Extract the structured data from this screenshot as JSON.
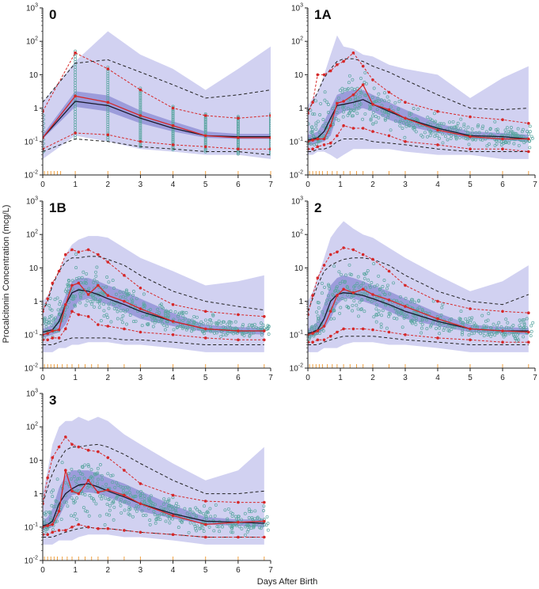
{
  "chart_data": {
    "type": "line",
    "title": "",
    "xlabel": "Days After Birth",
    "ylabel": "Procalcitonin Concentration (mcg/L)",
    "xlim": [
      0,
      7
    ],
    "ylim": [
      0.01,
      1000
    ],
    "yscale": "log",
    "x_ticks": [
      "0",
      "1",
      "2",
      "3",
      "4",
      "5",
      "6",
      "7"
    ],
    "y_ticks": [
      {
        "base": "10",
        "exp": "-2",
        "value": 0.01
      },
      {
        "base": "10",
        "exp": "-1",
        "value": 0.1
      },
      {
        "base": "1",
        "exp": "",
        "value": 1
      },
      {
        "base": "10",
        "exp": "",
        "value": 10
      },
      {
        "base": "10",
        "exp": "2",
        "value": 100
      },
      {
        "base": "10",
        "exp": "3",
        "value": 1000
      }
    ],
    "colors": {
      "band": "#c9c9ee",
      "band_dark": "#8e8ed6",
      "median": "#1a1a2e",
      "obs": "#d62728",
      "pred": "#222222",
      "points": "#5aa6a0",
      "ticks_obs": "#f0a040"
    },
    "panels": [
      {
        "label": "0",
        "x": [
          0,
          1,
          2,
          3,
          4,
          5,
          6,
          7
        ],
        "rug": [
          0.05,
          0.15,
          0.25,
          0.35,
          0.45,
          0.55,
          1,
          2,
          3,
          4,
          5,
          6,
          7
        ],
        "band_outer": {
          "low": [
            0.03,
            0.15,
            0.1,
            0.06,
            0.05,
            0.04,
            0.04,
            0.03
          ],
          "high": [
            1.5,
            25,
            200,
            40,
            15,
            3.5,
            15,
            70
          ]
        },
        "band_inner": {
          "low": [
            0.12,
            1.1,
            0.8,
            0.35,
            0.2,
            0.13,
            0.12,
            0.12
          ],
          "high": [
            0.16,
            3.2,
            2.4,
            0.85,
            0.4,
            0.2,
            0.17,
            0.17
          ]
        },
        "median_sim": [
          0.13,
          1.6,
          1.2,
          0.5,
          0.25,
          0.15,
          0.14,
          0.14
        ],
        "obs_median": [
          0.13,
          2.3,
          1.5,
          0.6,
          0.3,
          0.15,
          0.13,
          0.13
        ],
        "obs_upper": [
          0.8,
          45,
          15,
          3.5,
          1.0,
          0.6,
          0.5,
          0.6
        ],
        "obs_lower": [
          0.06,
          0.18,
          0.16,
          0.1,
          0.08,
          0.07,
          0.06,
          0.06
        ],
        "pred_upper": [
          1.5,
          22,
          28,
          12,
          5,
          2,
          2.5,
          3.5
        ],
        "pred_lower": [
          0.05,
          0.12,
          0.1,
          0.07,
          0.06,
          0.05,
          0.05,
          0.04
        ]
      },
      {
        "label": "1A",
        "x": [
          0,
          0.15,
          0.3,
          0.5,
          0.7,
          0.9,
          1.1,
          1.4,
          1.7,
          2.0,
          2.5,
          3,
          4,
          5,
          6,
          6.8
        ],
        "rug": [
          0.05,
          0.15,
          0.25,
          0.35,
          0.45,
          0.6,
          0.75,
          0.9,
          1.1,
          1.3,
          1.5,
          1.7,
          2.0,
          2.5,
          3,
          4,
          5,
          6,
          6.8
        ],
        "band_outer": {
          "low": [
            0.04,
            0.04,
            0.05,
            0.05,
            0.04,
            0.03,
            0.04,
            0.06,
            0.06,
            0.06,
            0.06,
            0.05,
            0.04,
            0.04,
            0.03,
            0.03
          ],
          "high": [
            1.2,
            2,
            3,
            10,
            40,
            150,
            70,
            60,
            40,
            35,
            20,
            15,
            10,
            2,
            8,
            18
          ]
        },
        "band_inner": {
          "low": [
            0.08,
            0.08,
            0.09,
            0.1,
            0.15,
            0.6,
            0.8,
            0.9,
            1.0,
            0.8,
            0.45,
            0.3,
            0.18,
            0.12,
            0.11,
            0.1
          ],
          "high": [
            0.16,
            0.17,
            0.2,
            0.4,
            1.0,
            2.5,
            3,
            3.5,
            3.5,
            2.5,
            1.5,
            0.9,
            0.35,
            0.2,
            0.18,
            0.16
          ]
        },
        "median_sim": [
          0.11,
          0.12,
          0.13,
          0.2,
          0.5,
          1.2,
          1.3,
          1.5,
          1.8,
          1.3,
          0.8,
          0.5,
          0.25,
          0.15,
          0.14,
          0.12
        ],
        "obs_median": [
          0.1,
          0.11,
          0.12,
          0.12,
          0.3,
          1.4,
          1.6,
          2.5,
          5.0,
          1.3,
          0.9,
          0.5,
          0.22,
          0.14,
          0.12,
          0.12
        ],
        "obs_upper": [
          0.7,
          1.5,
          10,
          10,
          13,
          20,
          25,
          45,
          18,
          7,
          3,
          1.5,
          0.8,
          0.55,
          0.45,
          0.35
        ],
        "obs_lower": [
          0.06,
          0.06,
          0.07,
          0.08,
          0.09,
          0.15,
          0.3,
          0.25,
          0.25,
          0.2,
          0.15,
          0.1,
          0.08,
          0.06,
          0.06,
          0.05
        ],
        "pred_upper": [
          0.8,
          1.5,
          3,
          8,
          15,
          25,
          30,
          30,
          25,
          18,
          12,
          7,
          2.5,
          1.0,
          0.9,
          1.0
        ],
        "pred_lower": [
          0.05,
          0.05,
          0.06,
          0.06,
          0.07,
          0.1,
          0.12,
          0.12,
          0.12,
          0.1,
          0.09,
          0.08,
          0.06,
          0.05,
          0.05,
          0.05
        ]
      },
      {
        "label": "1B",
        "x": [
          0,
          0.15,
          0.3,
          0.5,
          0.7,
          0.9,
          1.1,
          1.4,
          1.7,
          2.0,
          2.5,
          3,
          4,
          5,
          6,
          6.8
        ],
        "rug": [
          0.05,
          0.15,
          0.25,
          0.35,
          0.45,
          0.6,
          0.75,
          0.9,
          1.1,
          1.3,
          1.5,
          1.7,
          2.0,
          2.5,
          3,
          4,
          5,
          6,
          6.8
        ],
        "band_outer": {
          "low": [
            0.03,
            0.03,
            0.03,
            0.04,
            0.04,
            0.05,
            0.05,
            0.06,
            0.06,
            0.06,
            0.05,
            0.05,
            0.04,
            0.03,
            0.03,
            0.03
          ],
          "high": [
            1.0,
            1.5,
            3,
            8,
            25,
            50,
            70,
            90,
            90,
            80,
            40,
            20,
            8,
            3,
            4,
            6
          ]
        },
        "band_inner": {
          "low": [
            0.08,
            0.09,
            0.1,
            0.12,
            0.2,
            0.5,
            1.0,
            1.2,
            1.0,
            0.8,
            0.5,
            0.3,
            0.18,
            0.12,
            0.11,
            0.1
          ],
          "high": [
            0.15,
            0.17,
            0.2,
            0.5,
            1.5,
            4,
            5,
            5,
            4,
            3,
            2,
            1.2,
            0.45,
            0.2,
            0.17,
            0.16
          ]
        },
        "median_sim": [
          0.12,
          0.13,
          0.14,
          0.25,
          0.8,
          1.8,
          2.2,
          2.0,
          1.6,
          1.2,
          0.8,
          0.5,
          0.25,
          0.15,
          0.13,
          0.13
        ],
        "obs_median": [
          0.1,
          0.11,
          0.13,
          0.14,
          0.8,
          3.0,
          3.5,
          1.6,
          3.0,
          1.5,
          1.0,
          0.6,
          0.25,
          0.15,
          0.13,
          0.13
        ],
        "obs_upper": [
          0.5,
          1.2,
          3.5,
          8,
          25,
          35,
          30,
          35,
          25,
          15,
          6,
          2.5,
          0.8,
          0.5,
          0.4,
          0.35
        ],
        "obs_lower": [
          0.07,
          0.07,
          0.08,
          0.08,
          0.15,
          0.5,
          0.4,
          0.35,
          0.2,
          0.18,
          0.15,
          0.12,
          0.1,
          0.08,
          0.07,
          0.07
        ],
        "pred_upper": [
          0.5,
          1.0,
          3,
          8,
          15,
          20,
          20,
          22,
          22,
          18,
          12,
          6,
          2,
          1,
          0.7,
          0.55
        ],
        "pred_lower": [
          0.05,
          0.05,
          0.05,
          0.06,
          0.07,
          0.08,
          0.08,
          0.08,
          0.08,
          0.08,
          0.07,
          0.07,
          0.06,
          0.05,
          0.05,
          0.05
        ]
      },
      {
        "label": "2",
        "x": [
          0,
          0.15,
          0.3,
          0.5,
          0.7,
          0.9,
          1.1,
          1.4,
          1.7,
          2.0,
          2.5,
          3,
          4,
          5,
          6,
          6.8
        ],
        "rug": [
          0.05,
          0.15,
          0.25,
          0.35,
          0.45,
          0.6,
          0.75,
          0.9,
          1.1,
          1.3,
          1.5,
          1.7,
          2.0,
          2.5,
          3,
          4,
          5,
          6,
          6.8
        ],
        "band_outer": {
          "low": [
            0.03,
            0.03,
            0.03,
            0.04,
            0.04,
            0.04,
            0.05,
            0.06,
            0.06,
            0.06,
            0.05,
            0.05,
            0.04,
            0.03,
            0.03,
            0.03
          ],
          "high": [
            1.0,
            2,
            5,
            20,
            80,
            150,
            250,
            150,
            100,
            80,
            40,
            20,
            6,
            2,
            4,
            12
          ]
        },
        "band_inner": {
          "low": [
            0.08,
            0.09,
            0.1,
            0.15,
            0.3,
            0.8,
            1.2,
            1.2,
            1.0,
            0.8,
            0.5,
            0.3,
            0.18,
            0.12,
            0.11,
            0.1
          ],
          "high": [
            0.15,
            0.18,
            0.25,
            0.8,
            3,
            5,
            6,
            5,
            4,
            3,
            2,
            1.2,
            0.45,
            0.2,
            0.17,
            0.16
          ]
        },
        "median_sim": [
          0.11,
          0.12,
          0.14,
          0.3,
          1.0,
          1.6,
          1.8,
          1.7,
          1.5,
          1.2,
          0.8,
          0.5,
          0.25,
          0.15,
          0.13,
          0.13
        ],
        "obs_median": [
          0.1,
          0.11,
          0.13,
          0.18,
          0.5,
          1.5,
          2.3,
          1.8,
          2.3,
          1.6,
          1.1,
          0.7,
          0.3,
          0.15,
          0.13,
          0.12
        ],
        "obs_upper": [
          0.4,
          1.5,
          5,
          12,
          25,
          30,
          40,
          35,
          25,
          18,
          8,
          3,
          1.0,
          0.6,
          0.5,
          0.45
        ],
        "obs_lower": [
          0.06,
          0.06,
          0.07,
          0.07,
          0.09,
          0.12,
          0.15,
          0.15,
          0.15,
          0.14,
          0.12,
          0.1,
          0.08,
          0.07,
          0.06,
          0.06
        ],
        "pred_upper": [
          0.5,
          1.2,
          3,
          8,
          12,
          15,
          18,
          20,
          20,
          18,
          12,
          6,
          2,
          1,
          0.8,
          1.6
        ],
        "pred_lower": [
          0.05,
          0.05,
          0.05,
          0.06,
          0.07,
          0.08,
          0.09,
          0.09,
          0.09,
          0.09,
          0.08,
          0.07,
          0.06,
          0.05,
          0.05,
          0.05
        ]
      },
      {
        "label": "3",
        "x": [
          0,
          0.15,
          0.3,
          0.5,
          0.7,
          0.9,
          1.1,
          1.4,
          1.7,
          2.0,
          2.5,
          3,
          4,
          5,
          6,
          6.8
        ],
        "rug": [
          0.05,
          0.15,
          0.25,
          0.35,
          0.45,
          0.6,
          0.75,
          0.9,
          1.1,
          1.3,
          1.5,
          1.7,
          2.0,
          2.5,
          3,
          4,
          5,
          6,
          6.8
        ],
        "band_outer": {
          "low": [
            0.03,
            0.03,
            0.03,
            0.04,
            0.04,
            0.04,
            0.05,
            0.06,
            0.06,
            0.06,
            0.05,
            0.05,
            0.04,
            0.03,
            0.03,
            0.03
          ],
          "high": [
            1.0,
            5,
            30,
            100,
            150,
            150,
            200,
            150,
            200,
            150,
            60,
            30,
            8,
            2.5,
            5,
            25
          ]
        },
        "band_inner": {
          "low": [
            0.08,
            0.09,
            0.1,
            0.2,
            0.5,
            0.9,
            1.0,
            1.1,
            1.0,
            0.8,
            0.5,
            0.3,
            0.18,
            0.12,
            0.11,
            0.1
          ],
          "high": [
            0.15,
            0.2,
            0.35,
            1.5,
            3.5,
            5,
            5,
            5,
            4,
            3,
            2,
            1.2,
            0.45,
            0.2,
            0.17,
            0.17
          ]
        },
        "median_sim": [
          0.11,
          0.12,
          0.15,
          0.5,
          1.0,
          1.4,
          1.8,
          2.0,
          1.6,
          1.2,
          0.8,
          0.5,
          0.25,
          0.15,
          0.14,
          0.13
        ],
        "obs_median": [
          0.1,
          0.11,
          0.12,
          0.3,
          5.0,
          1.2,
          1.0,
          2.5,
          1.1,
          1.3,
          0.9,
          0.5,
          0.22,
          0.12,
          0.14,
          0.15
        ],
        "obs_upper": [
          0.5,
          3,
          12,
          25,
          50,
          30,
          25,
          20,
          18,
          12,
          5,
          2,
          0.9,
          0.6,
          0.55,
          0.55
        ],
        "obs_lower": [
          0.06,
          0.06,
          0.07,
          0.08,
          0.08,
          0.1,
          0.12,
          0.1,
          0.09,
          0.09,
          0.08,
          0.07,
          0.06,
          0.05,
          0.05,
          0.05
        ],
        "pred_upper": [
          0.5,
          1.5,
          4,
          10,
          20,
          25,
          25,
          28,
          30,
          25,
          15,
          8,
          2.5,
          1,
          1,
          1.2
        ],
        "pred_lower": [
          0.05,
          0.05,
          0.05,
          0.06,
          0.07,
          0.08,
          0.09,
          0.1,
          0.09,
          0.09,
          0.08,
          0.07,
          0.06,
          0.05,
          0.05,
          0.05
        ]
      }
    ]
  }
}
